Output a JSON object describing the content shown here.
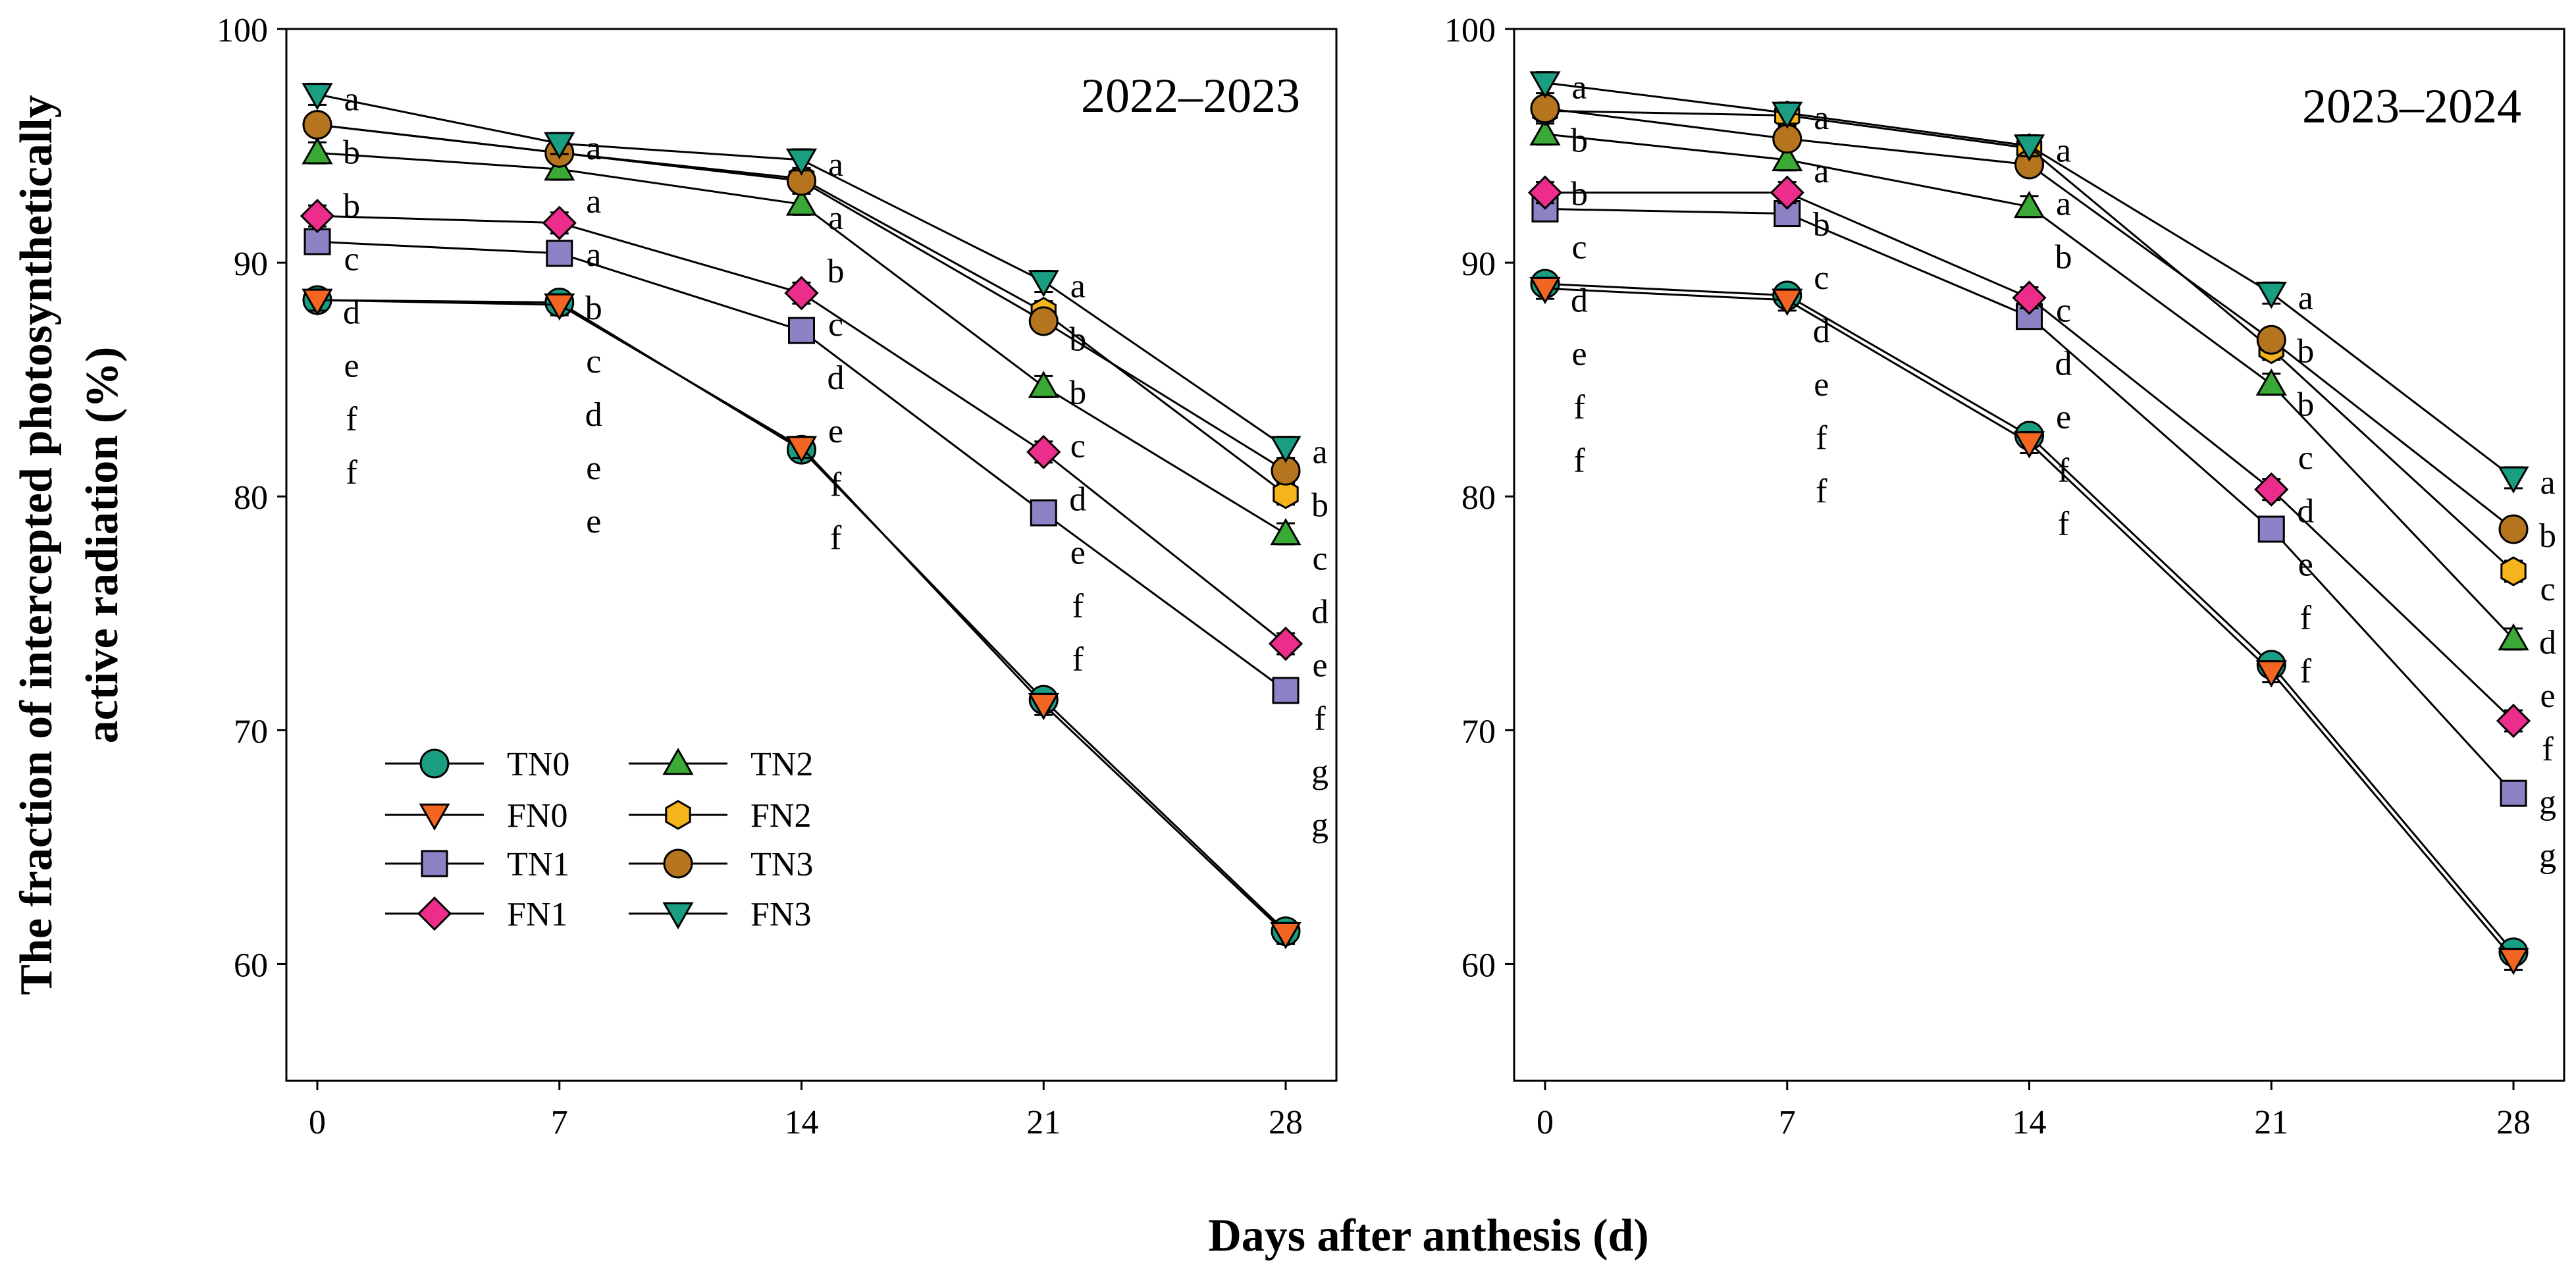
{
  "figure": {
    "ylabel_line1": "The  fraction of intercepted photosynthetically",
    "ylabel_line2": "active radiation (%)",
    "xlabel": "Days after anthesis (d)"
  },
  "series_styles": [
    {
      "name": "TN0",
      "marker": "circle",
      "color": "#1a9e82"
    },
    {
      "name": "FN0",
      "marker": "triangle-down",
      "color": "#f26522"
    },
    {
      "name": "TN1",
      "marker": "square",
      "color": "#8b83c6"
    },
    {
      "name": "FN1",
      "marker": "diamond",
      "color": "#ec2d8c"
    },
    {
      "name": "TN2",
      "marker": "triangle-up",
      "color": "#3aa935"
    },
    {
      "name": "FN2",
      "marker": "hexagon",
      "color": "#f5b31c"
    },
    {
      "name": "TN3",
      "marker": "circle",
      "color": "#b5741e"
    },
    {
      "name": "FN3",
      "marker": "triangle-down",
      "color": "#1a9e82"
    }
  ],
  "chart_data": [
    {
      "type": "line",
      "title": "2022–2023",
      "xlabel": "Days after anthesis (d)",
      "ylabel": "The  fraction of intercepted photosynthetically active radiation (%)",
      "x": [
        0,
        7,
        14,
        21,
        28
      ],
      "x_ticks": [
        "0",
        "7",
        "14",
        "21",
        "28"
      ],
      "ylim": [
        55,
        100
      ],
      "y_ticks": [
        "60",
        "70",
        "80",
        "90",
        "100"
      ],
      "legend_position": "lower-left",
      "series": [
        {
          "name": "TN0",
          "values": [
            88.4,
            88.3,
            82.0,
            71.3,
            61.4
          ]
        },
        {
          "name": "FN0",
          "values": [
            88.4,
            88.2,
            82.1,
            71.1,
            61.3
          ]
        },
        {
          "name": "TN1",
          "values": [
            90.9,
            90.4,
            87.1,
            79.3,
            71.7
          ]
        },
        {
          "name": "FN1",
          "values": [
            92.0,
            91.7,
            88.7,
            81.9,
            73.7
          ]
        },
        {
          "name": "TN2",
          "values": [
            94.7,
            94.0,
            92.5,
            84.7,
            78.4
          ]
        },
        {
          "name": "FN2",
          "values": [
            95.9,
            94.7,
            93.6,
            87.9,
            80.1
          ]
        },
        {
          "name": "TN3",
          "values": [
            95.9,
            94.7,
            93.5,
            87.5,
            81.1
          ]
        },
        {
          "name": "FN3",
          "values": [
            97.2,
            95.1,
            94.4,
            89.2,
            82.1
          ]
        }
      ],
      "significance_letters": [
        [
          "a",
          "b",
          "b",
          "c",
          "d",
          "e",
          "f",
          "f"
        ],
        [
          "a",
          "a",
          "a",
          "b",
          "c",
          "d",
          "e",
          "e"
        ],
        [
          "a",
          "a",
          "b",
          "c",
          "d",
          "e",
          "f",
          "f"
        ],
        [
          "a",
          "b",
          "b",
          "c",
          "d",
          "e",
          "f",
          "f"
        ],
        [
          "a",
          "b",
          "c",
          "d",
          "e",
          "f",
          "g",
          "g"
        ]
      ]
    },
    {
      "type": "line",
      "title": "2023–2024",
      "xlabel": "Days after anthesis (d)",
      "ylabel": "The  fraction of intercepted photosynthetically active radiation (%)",
      "x": [
        0,
        7,
        14,
        21,
        28
      ],
      "x_ticks": [
        "0",
        "7",
        "14",
        "21",
        "28"
      ],
      "ylim": [
        55,
        100
      ],
      "y_ticks": [
        "60",
        "70",
        "80",
        "90",
        "100"
      ],
      "series": [
        {
          "name": "TN0",
          "values": [
            89.1,
            88.6,
            82.6,
            72.8,
            60.5
          ]
        },
        {
          "name": "FN0",
          "values": [
            88.9,
            88.4,
            82.3,
            72.5,
            60.2
          ]
        },
        {
          "name": "TN1",
          "values": [
            92.3,
            92.1,
            87.7,
            78.6,
            67.3
          ]
        },
        {
          "name": "FN1",
          "values": [
            93.0,
            93.0,
            88.5,
            80.3,
            70.4
          ]
        },
        {
          "name": "TN2",
          "values": [
            95.5,
            94.4,
            92.4,
            84.8,
            73.9
          ]
        },
        {
          "name": "FN2",
          "values": [
            96.5,
            96.3,
            94.9,
            86.3,
            76.8
          ]
        },
        {
          "name": "TN3",
          "values": [
            96.6,
            95.3,
            94.2,
            86.7,
            78.6
          ]
        },
        {
          "name": "FN3",
          "values": [
            97.7,
            96.4,
            95.0,
            88.7,
            80.8
          ]
        }
      ],
      "significance_letters": [
        [
          "a",
          "b",
          "b",
          "c",
          "d",
          "e",
          "f",
          "f"
        ],
        [
          "a",
          "a",
          "b",
          "c",
          "d",
          "e",
          "f",
          "f"
        ],
        [
          "a",
          "a",
          "b",
          "c",
          "d",
          "e",
          "f",
          "f"
        ],
        [
          "a",
          "b",
          "b",
          "c",
          "d",
          "e",
          "f",
          "f"
        ],
        [
          "a",
          "b",
          "c",
          "d",
          "e",
          "f",
          "g",
          "g"
        ]
      ]
    }
  ]
}
